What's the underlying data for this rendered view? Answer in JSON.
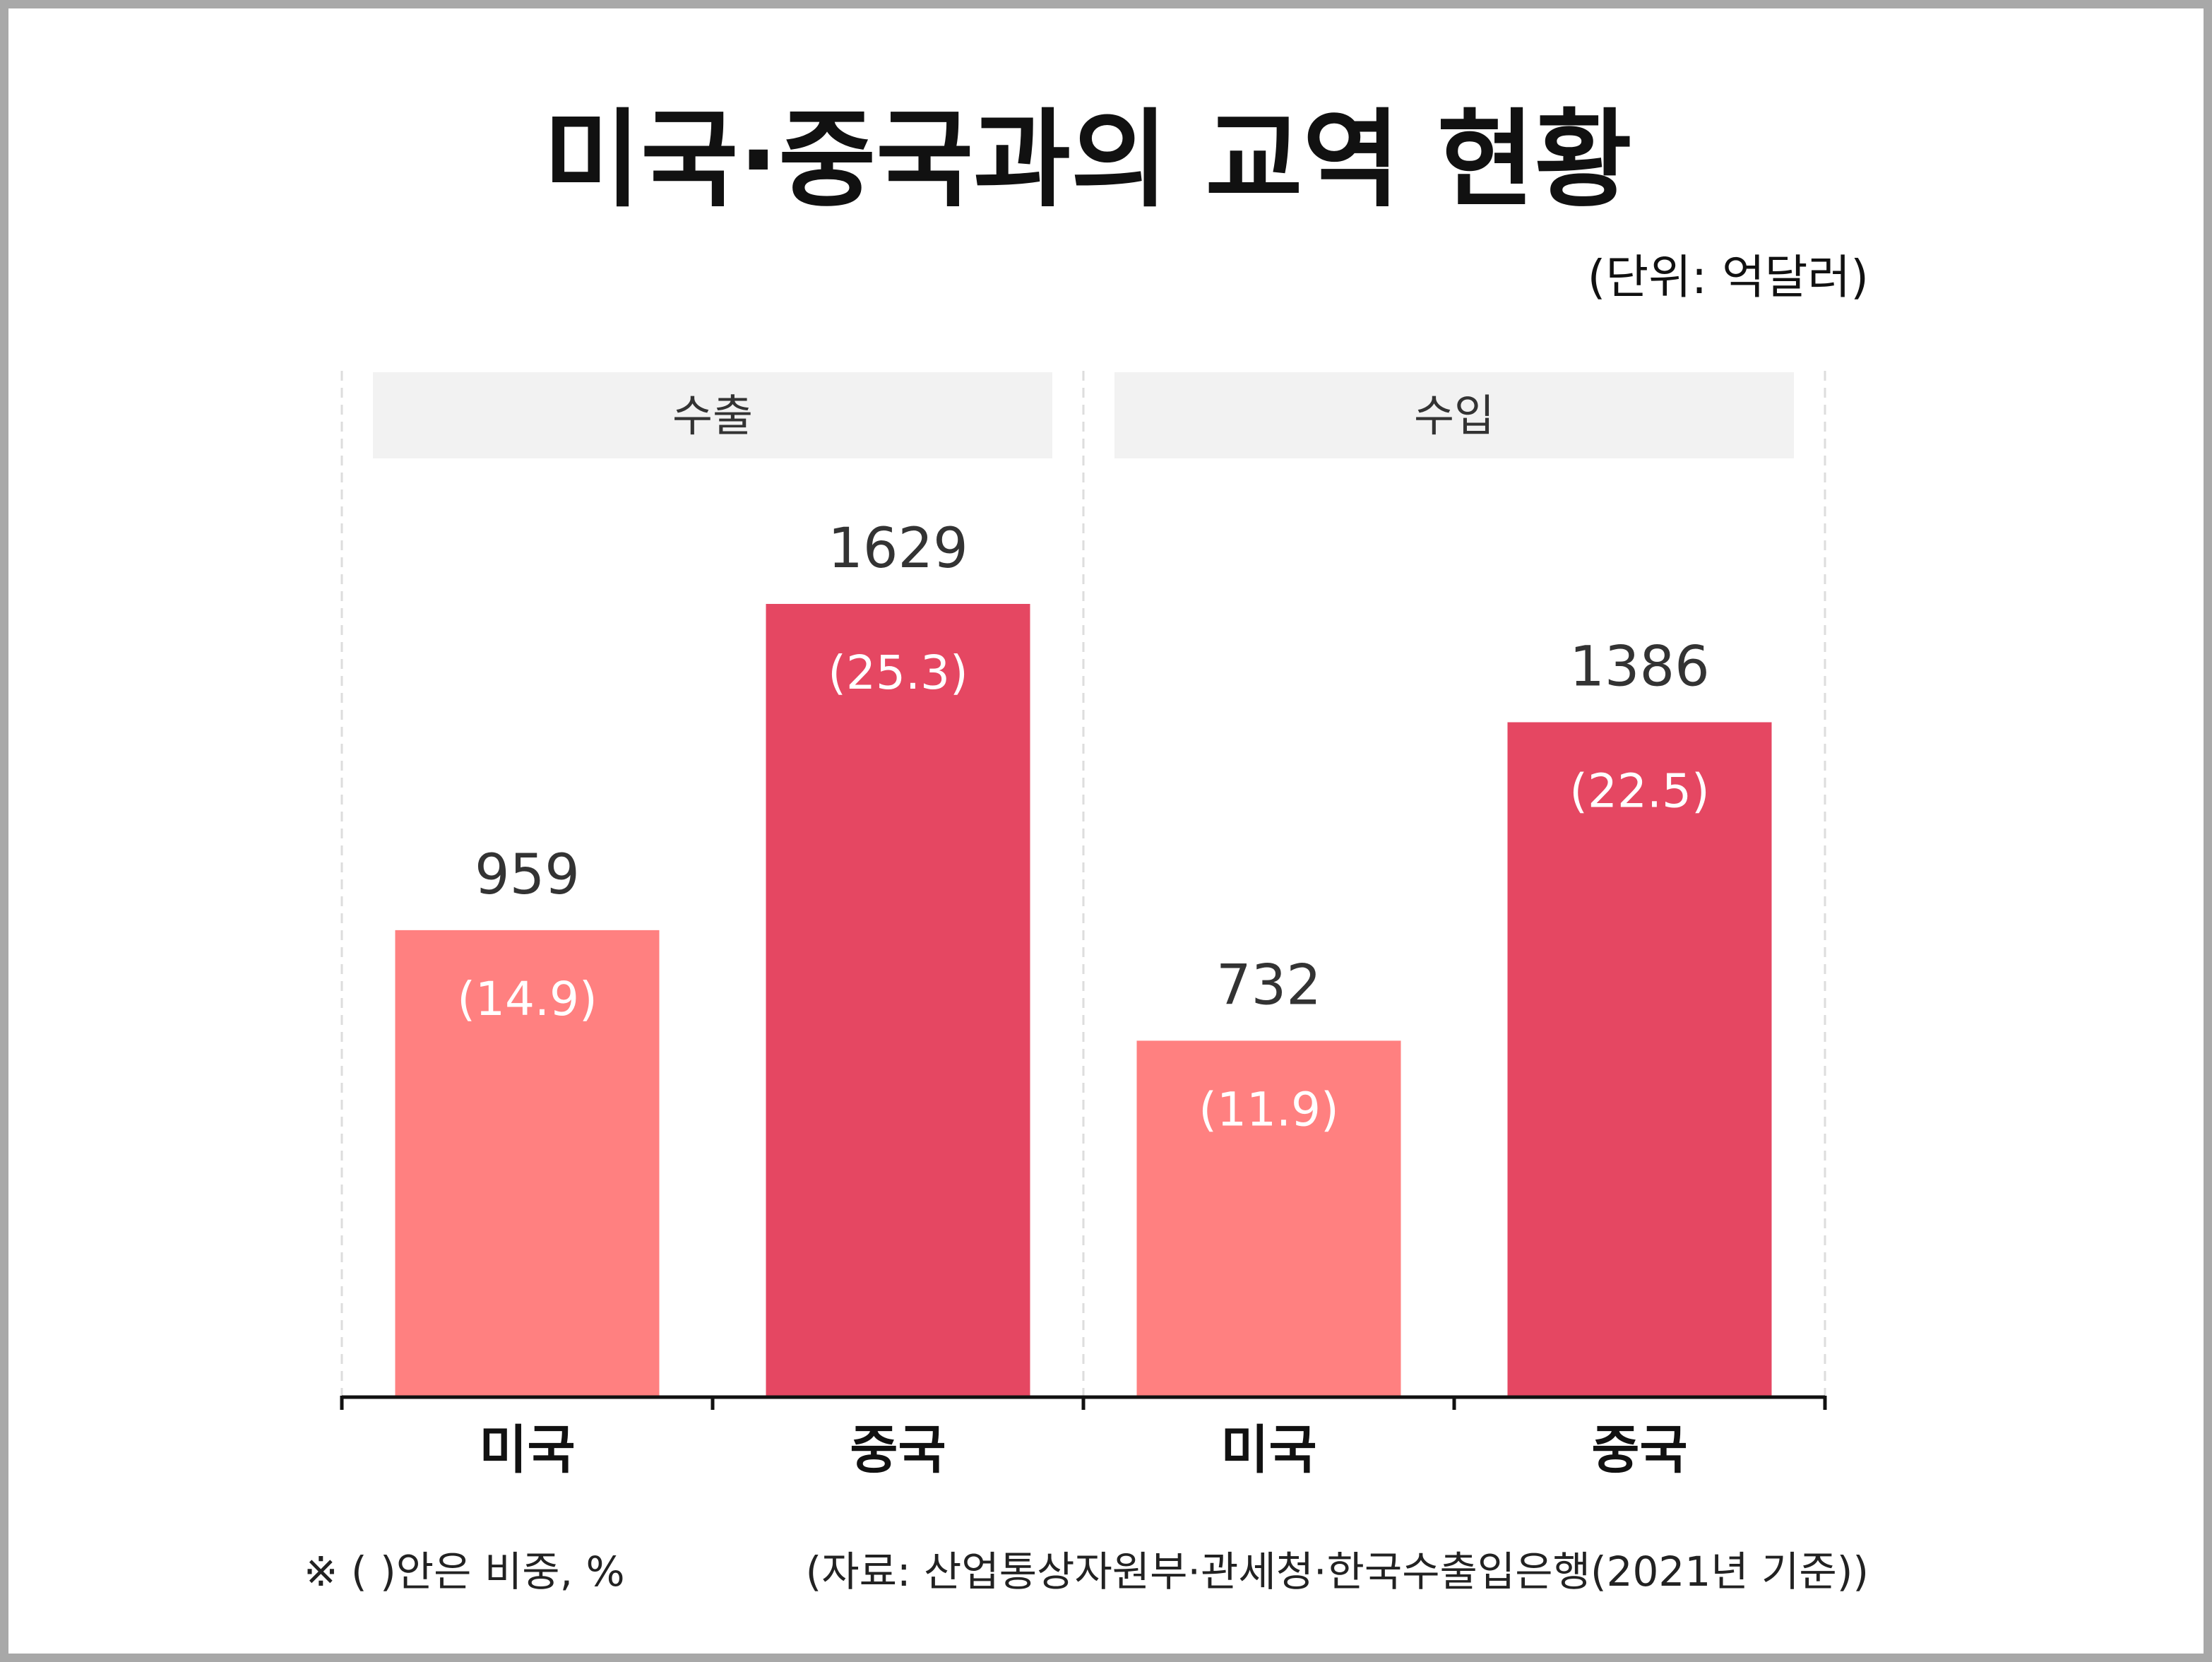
{
  "chart_data": {
    "type": "bar",
    "title": "미국·중국과의 교역 현황",
    "unit_note": "(단위: 억달러)",
    "panels": [
      {
        "label": "수출",
        "categories": [
          "미국",
          "중국"
        ],
        "values": [
          959,
          1629
        ],
        "value_labels": [
          "959",
          "1629"
        ],
        "share_labels": [
          "(14.9)",
          "(25.3)"
        ],
        "colors": [
          "#ff8080",
          "#e54762"
        ]
      },
      {
        "label": "수입",
        "categories": [
          "미국",
          "중국"
        ],
        "values": [
          732,
          1386
        ],
        "value_labels": [
          "732",
          "1386"
        ],
        "share_labels": [
          "(11.9)",
          "(22.5)"
        ],
        "colors": [
          "#ff8080",
          "#e54762"
        ]
      }
    ],
    "ylim": [
      0,
      2000
    ],
    "grid": false,
    "legend": "none"
  },
  "footnote": "※ ( )안은 비중, %",
  "source": "(자료: 산업통상자원부·관세청·한국수출입은행(2021년 기준))",
  "colors": {
    "panel_header_bg": "#f2f2f2",
    "axis": "#111111",
    "divider": "#dddddd"
  }
}
